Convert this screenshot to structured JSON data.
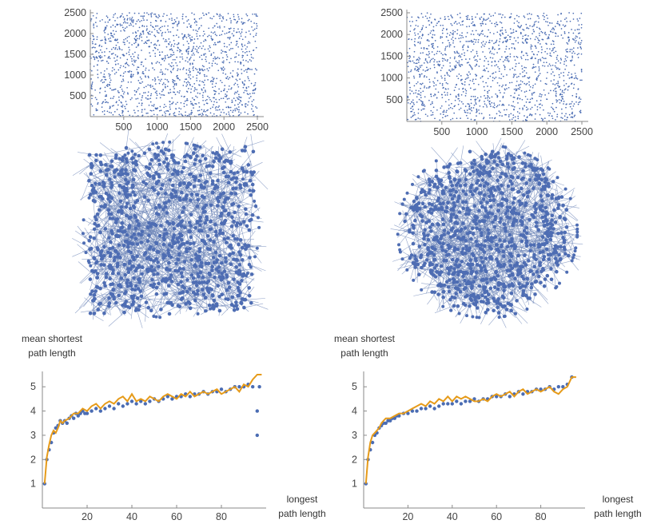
{
  "colors": {
    "point": "#4a6cb3",
    "edge": "#6d86b8",
    "node": "#4e6db3",
    "fit_line": "#e69b1a",
    "axis": "#8a8a8a"
  },
  "chart_data": [
    {
      "type": "scatter",
      "panel": "top-left",
      "title": "",
      "xlabel": "",
      "ylabel": "",
      "xlim": [
        0,
        2500
      ],
      "ylim": [
        0,
        2500
      ],
      "xticks": [
        "500",
        "1000",
        "1500",
        "2000",
        "2500"
      ],
      "yticks": [
        "500",
        "1000",
        "1500",
        "2000",
        "2500"
      ],
      "point_count": 1500,
      "distribution": "uniform random"
    },
    {
      "type": "scatter",
      "panel": "top-right",
      "title": "",
      "xlabel": "",
      "ylabel": "",
      "xlim": [
        0,
        2500
      ],
      "ylim": [
        0,
        2500
      ],
      "xticks": [
        "500",
        "1000",
        "1500",
        "2000",
        "2500"
      ],
      "yticks": [
        "500",
        "1000",
        "1500",
        "2000",
        "2500"
      ],
      "point_count": 1500,
      "distribution": "uniform random"
    },
    {
      "type": "network",
      "panel": "middle-left",
      "shape": "square"
    },
    {
      "type": "network",
      "panel": "middle-right",
      "shape": "round"
    },
    {
      "type": "line",
      "panel": "bottom-left",
      "xlabel": "longest\npath length",
      "ylabel": "mean shortest\npath length",
      "xlim": [
        0,
        100
      ],
      "ylim": [
        0,
        5.6
      ],
      "xticks": [
        "20",
        "40",
        "60",
        "80"
      ],
      "yticks": [
        "1",
        "2",
        "3",
        "4",
        "5"
      ],
      "line_points": [
        [
          1,
          1
        ],
        [
          2,
          2.1
        ],
        [
          3,
          2.6
        ],
        [
          4,
          3
        ],
        [
          5,
          3.2
        ],
        [
          6,
          3.1
        ],
        [
          7,
          3.3
        ],
        [
          8,
          3.6
        ],
        [
          9,
          3.5
        ],
        [
          10,
          3.6
        ],
        [
          12,
          3.7
        ],
        [
          14,
          3.9
        ],
        [
          16,
          3.9
        ],
        [
          18,
          4.1
        ],
        [
          20,
          4
        ],
        [
          22,
          4.2
        ],
        [
          24,
          4.3
        ],
        [
          26,
          4.1
        ],
        [
          28,
          4.3
        ],
        [
          30,
          4.4
        ],
        [
          32,
          4.3
        ],
        [
          34,
          4.5
        ],
        [
          36,
          4.6
        ],
        [
          38,
          4.4
        ],
        [
          40,
          4.7
        ],
        [
          42,
          4.4
        ],
        [
          44,
          4.5
        ],
        [
          46,
          4.4
        ],
        [
          48,
          4.6
        ],
        [
          50,
          4.5
        ],
        [
          52,
          4.4
        ],
        [
          54,
          4.6
        ],
        [
          56,
          4.7
        ],
        [
          58,
          4.6
        ],
        [
          60,
          4.5
        ],
        [
          62,
          4.7
        ],
        [
          64,
          4.6
        ],
        [
          66,
          4.8
        ],
        [
          68,
          4.6
        ],
        [
          70,
          4.7
        ],
        [
          72,
          4.8
        ],
        [
          74,
          4.7
        ],
        [
          76,
          4.8
        ],
        [
          78,
          4.9
        ],
        [
          80,
          4.7
        ],
        [
          82,
          4.8
        ],
        [
          84,
          4.9
        ],
        [
          86,
          5
        ],
        [
          88,
          4.8
        ],
        [
          90,
          5.1
        ],
        [
          92,
          5
        ],
        [
          94,
          5.3
        ],
        [
          96,
          5.5
        ],
        [
          98,
          5.5
        ]
      ],
      "scatter_points": [
        [
          1,
          1
        ],
        [
          2,
          2
        ],
        [
          3,
          2.4
        ],
        [
          4,
          2.7
        ],
        [
          5,
          3.1
        ],
        [
          6,
          3.3
        ],
        [
          7,
          3.4
        ],
        [
          8,
          3.6
        ],
        [
          9,
          3.5
        ],
        [
          10,
          3.6
        ],
        [
          11,
          3.5
        ],
        [
          12,
          3.7
        ],
        [
          13,
          3.8
        ],
        [
          14,
          3.7
        ],
        [
          15,
          3.9
        ],
        [
          16,
          3.8
        ],
        [
          17,
          3.9
        ],
        [
          18,
          4
        ],
        [
          19,
          3.9
        ],
        [
          20,
          3.9
        ],
        [
          22,
          4
        ],
        [
          24,
          4.1
        ],
        [
          26,
          4
        ],
        [
          28,
          4.1
        ],
        [
          30,
          4.2
        ],
        [
          32,
          4.1
        ],
        [
          34,
          4.3
        ],
        [
          36,
          4.2
        ],
        [
          38,
          4.3
        ],
        [
          40,
          4.4
        ],
        [
          42,
          4.3
        ],
        [
          44,
          4.4
        ],
        [
          46,
          4.3
        ],
        [
          48,
          4.4
        ],
        [
          50,
          4.5
        ],
        [
          52,
          4.4
        ],
        [
          54,
          4.5
        ],
        [
          56,
          4.6
        ],
        [
          58,
          4.5
        ],
        [
          60,
          4.6
        ],
        [
          62,
          4.6
        ],
        [
          64,
          4.7
        ],
        [
          66,
          4.6
        ],
        [
          68,
          4.7
        ],
        [
          70,
          4.7
        ],
        [
          72,
          4.8
        ],
        [
          74,
          4.7
        ],
        [
          76,
          4.8
        ],
        [
          78,
          4.8
        ],
        [
          80,
          4.9
        ],
        [
          82,
          4.8
        ],
        [
          84,
          4.9
        ],
        [
          86,
          5
        ],
        [
          88,
          5
        ],
        [
          90,
          5
        ],
        [
          92,
          5.1
        ],
        [
          94,
          5
        ],
        [
          96,
          4
        ],
        [
          96,
          3
        ],
        [
          97,
          5
        ]
      ]
    },
    {
      "type": "line",
      "panel": "bottom-right",
      "xlabel": "longest\npath length",
      "ylabel": "mean shortest\npath length",
      "xlim": [
        0,
        100
      ],
      "ylim": [
        0,
        5.6
      ],
      "xticks": [
        "20",
        "40",
        "60",
        "80"
      ],
      "yticks": [
        "1",
        "2",
        "3",
        "4",
        "5"
      ],
      "line_points": [
        [
          1,
          1
        ],
        [
          2,
          2.1
        ],
        [
          3,
          2.7
        ],
        [
          4,
          3
        ],
        [
          5,
          3.1
        ],
        [
          6,
          3.2
        ],
        [
          7,
          3.3
        ],
        [
          8,
          3.5
        ],
        [
          9,
          3.6
        ],
        [
          10,
          3.7
        ],
        [
          12,
          3.7
        ],
        [
          14,
          3.8
        ],
        [
          16,
          3.9
        ],
        [
          18,
          3.9
        ],
        [
          20,
          4
        ],
        [
          22,
          4.1
        ],
        [
          24,
          4.2
        ],
        [
          26,
          4.3
        ],
        [
          28,
          4.2
        ],
        [
          30,
          4.4
        ],
        [
          32,
          4.3
        ],
        [
          34,
          4.5
        ],
        [
          36,
          4.4
        ],
        [
          38,
          4.6
        ],
        [
          40,
          4.4
        ],
        [
          42,
          4.6
        ],
        [
          44,
          4.5
        ],
        [
          46,
          4.6
        ],
        [
          48,
          4.5
        ],
        [
          50,
          4.4
        ],
        [
          52,
          4.4
        ],
        [
          54,
          4.5
        ],
        [
          56,
          4.4
        ],
        [
          58,
          4.6
        ],
        [
          60,
          4.7
        ],
        [
          62,
          4.6
        ],
        [
          64,
          4.7
        ],
        [
          66,
          4.8
        ],
        [
          68,
          4.6
        ],
        [
          70,
          4.8
        ],
        [
          72,
          4.9
        ],
        [
          74,
          4.7
        ],
        [
          76,
          4.8
        ],
        [
          78,
          4.9
        ],
        [
          80,
          4.8
        ],
        [
          82,
          4.9
        ],
        [
          84,
          5
        ],
        [
          86,
          4.8
        ],
        [
          88,
          4.7
        ],
        [
          90,
          4.9
        ],
        [
          92,
          5
        ],
        [
          94,
          5.4
        ],
        [
          96,
          5.4
        ]
      ],
      "scatter_points": [
        [
          1,
          1
        ],
        [
          2,
          2
        ],
        [
          3,
          2.4
        ],
        [
          4,
          2.7
        ],
        [
          5,
          3
        ],
        [
          6,
          3.1
        ],
        [
          7,
          3.3
        ],
        [
          8,
          3.4
        ],
        [
          9,
          3.5
        ],
        [
          10,
          3.5
        ],
        [
          11,
          3.6
        ],
        [
          12,
          3.6
        ],
        [
          13,
          3.7
        ],
        [
          14,
          3.7
        ],
        [
          15,
          3.8
        ],
        [
          16,
          3.8
        ],
        [
          18,
          3.9
        ],
        [
          20,
          3.9
        ],
        [
          22,
          4
        ],
        [
          24,
          4
        ],
        [
          26,
          4.1
        ],
        [
          28,
          4.1
        ],
        [
          30,
          4.2
        ],
        [
          32,
          4.1
        ],
        [
          34,
          4.2
        ],
        [
          36,
          4.3
        ],
        [
          38,
          4.3
        ],
        [
          40,
          4.3
        ],
        [
          42,
          4.4
        ],
        [
          44,
          4.3
        ],
        [
          46,
          4.4
        ],
        [
          48,
          4.4
        ],
        [
          50,
          4.5
        ],
        [
          52,
          4.4
        ],
        [
          54,
          4.5
        ],
        [
          56,
          4.5
        ],
        [
          58,
          4.6
        ],
        [
          60,
          4.6
        ],
        [
          62,
          4.6
        ],
        [
          64,
          4.7
        ],
        [
          66,
          4.6
        ],
        [
          68,
          4.7
        ],
        [
          70,
          4.8
        ],
        [
          72,
          4.7
        ],
        [
          74,
          4.8
        ],
        [
          76,
          4.8
        ],
        [
          78,
          4.9
        ],
        [
          80,
          4.9
        ],
        [
          82,
          4.9
        ],
        [
          84,
          5
        ],
        [
          86,
          4.9
        ],
        [
          88,
          5
        ],
        [
          90,
          5
        ],
        [
          92,
          5.1
        ],
        [
          94,
          5.4
        ]
      ]
    }
  ]
}
